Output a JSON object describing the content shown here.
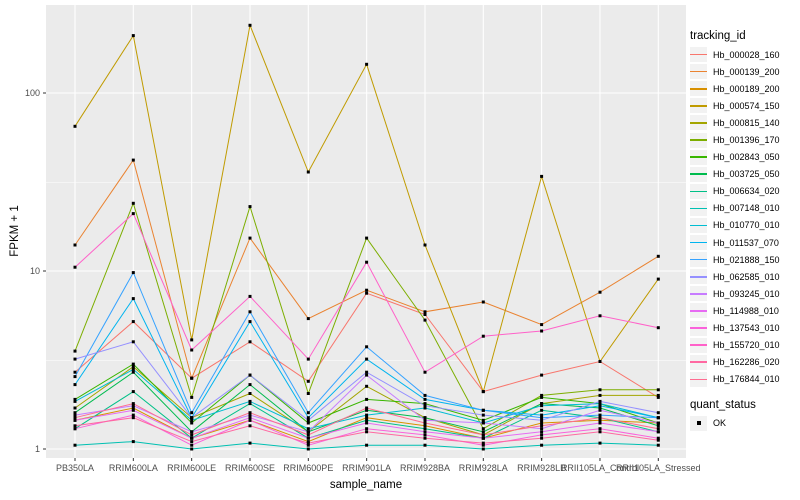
{
  "chart_data": {
    "type": "line",
    "title": "",
    "xlabel": "sample_name",
    "ylabel": "FPKM + 1",
    "y_scale": "log10",
    "y_ticks": [
      1,
      10,
      100
    ],
    "ylim": [
      0.9,
      330
    ],
    "grid": "major-and-minor, white on grey panel",
    "legend_position": "right",
    "legend_title": "tracking_id",
    "quant_legend": {
      "title": "quant_status",
      "items": [
        "OK"
      ]
    },
    "categories": [
      "PB350LA",
      "RRIM600LA",
      "RRIM600LE",
      "RRIM600SE",
      "RRIM600PE",
      "RRIM901LA",
      "RRIM928BA",
      "RRIM928LA",
      "RRIM928LB",
      "RRII105LA_Control",
      "RRII105LA_Stressed"
    ],
    "series": [
      {
        "name": "Hb_000028_160",
        "color": "#F8766D",
        "values": [
          2.7,
          5.2,
          2.5,
          4.0,
          2.4,
          7.5,
          5.7,
          2.1,
          2.6,
          3.1,
          1.95
        ]
      },
      {
        "name": "Hb_000139_200",
        "color": "#EA8331",
        "values": [
          14,
          42,
          2.5,
          15.3,
          5.4,
          7.8,
          5.9,
          6.7,
          5.0,
          7.6,
          12.1
        ]
      },
      {
        "name": "Hb_000189_200",
        "color": "#D89000",
        "values": [
          1.45,
          1.7,
          1.15,
          1.45,
          1.1,
          1.5,
          1.35,
          1.15,
          1.4,
          1.45,
          1.4
        ]
      },
      {
        "name": "Hb_000574_150",
        "color": "#C09B00",
        "values": [
          65,
          210,
          4.1,
          240,
          36,
          145,
          14,
          2.1,
          34,
          3.1,
          9.0
        ]
      },
      {
        "name": "Hb_000815_140",
        "color": "#A3A500",
        "values": [
          1.7,
          2.9,
          1.5,
          2.05,
          1.25,
          2.25,
          1.5,
          1.2,
          1.8,
          2.0,
          2.0
        ]
      },
      {
        "name": "Hb_001396_170",
        "color": "#7CAE00",
        "values": [
          3.55,
          24,
          1.95,
          23,
          2.05,
          15.3,
          5.3,
          1.3,
          2.0,
          2.15,
          2.15
        ]
      },
      {
        "name": "Hb_002843_050",
        "color": "#39B600",
        "values": [
          1.9,
          3.0,
          1.4,
          2.6,
          1.4,
          1.9,
          1.8,
          1.45,
          1.95,
          1.8,
          1.4
        ]
      },
      {
        "name": "Hb_003725_050",
        "color": "#00BB4E",
        "values": [
          1.6,
          2.7,
          1.25,
          2.3,
          1.25,
          1.65,
          1.5,
          1.25,
          1.8,
          1.7,
          1.35
        ]
      },
      {
        "name": "Hb_006634_020",
        "color": "#00C087",
        "values": [
          1.3,
          2.1,
          1.15,
          1.8,
          1.15,
          1.45,
          1.3,
          1.15,
          1.65,
          1.5,
          1.25
        ]
      },
      {
        "name": "Hb_007148_010",
        "color": "#00C0B2",
        "values": [
          1.05,
          1.1,
          1.0,
          1.08,
          1.0,
          1.05,
          1.05,
          1.0,
          1.05,
          1.08,
          1.05
        ]
      },
      {
        "name": "Hb_010770_010",
        "color": "#00BDD2",
        "values": [
          1.85,
          2.8,
          1.45,
          1.85,
          1.3,
          1.55,
          1.7,
          1.4,
          1.75,
          1.8,
          1.5
        ]
      },
      {
        "name": "Hb_011537_070",
        "color": "#00B4EF",
        "values": [
          2.3,
          7.0,
          1.5,
          5.2,
          1.5,
          3.2,
          1.9,
          1.65,
          1.55,
          1.75,
          1.5
        ]
      },
      {
        "name": "Hb_021888_150",
        "color": "#35A2FF",
        "values": [
          2.55,
          9.8,
          1.6,
          5.9,
          1.6,
          3.75,
          2.0,
          1.65,
          1.5,
          1.55,
          1.5
        ]
      },
      {
        "name": "Hb_062585_010",
        "color": "#9590FF",
        "values": [
          3.2,
          4.0,
          1.5,
          2.6,
          1.45,
          2.7,
          1.75,
          1.55,
          1.45,
          1.85,
          1.6
        ]
      },
      {
        "name": "Hb_093245_010",
        "color": "#C77CFF",
        "values": [
          1.55,
          1.75,
          1.25,
          1.55,
          1.25,
          2.6,
          1.45,
          1.4,
          1.3,
          1.65,
          1.4
        ]
      },
      {
        "name": "Hb_114988_010",
        "color": "#E76BF3",
        "values": [
          1.45,
          1.65,
          1.15,
          1.5,
          1.15,
          1.4,
          1.25,
          1.15,
          1.25,
          1.4,
          1.25
        ]
      },
      {
        "name": "Hb_137543_010",
        "color": "#FA62DB",
        "values": [
          1.3,
          1.55,
          1.05,
          1.45,
          1.05,
          1.3,
          1.2,
          1.05,
          1.2,
          1.3,
          1.15
        ]
      },
      {
        "name": "Hb_155720_010",
        "color": "#FF61C9",
        "values": [
          10.5,
          21,
          3.6,
          7.2,
          3.2,
          11.2,
          2.7,
          4.3,
          4.6,
          5.6,
          4.8
        ]
      },
      {
        "name": "Hb_162286_020",
        "color": "#FF68A1",
        "values": [
          1.35,
          1.5,
          1.1,
          1.35,
          1.08,
          1.25,
          1.15,
          1.08,
          1.15,
          1.25,
          1.12
        ]
      },
      {
        "name": "Hb_176844_010",
        "color": "#FF6C91",
        "values": [
          1.5,
          1.8,
          1.2,
          1.6,
          1.2,
          1.7,
          1.4,
          1.2,
          1.35,
          1.5,
          1.3
        ]
      }
    ]
  },
  "style": {
    "panel_bg": "#EBEBEB",
    "grid": "#FFFFFF",
    "tick_label": "#4D4D4D",
    "tick_mark": "#333333",
    "point": "#000000",
    "legend_key_bg": "#F2F2F2"
  }
}
